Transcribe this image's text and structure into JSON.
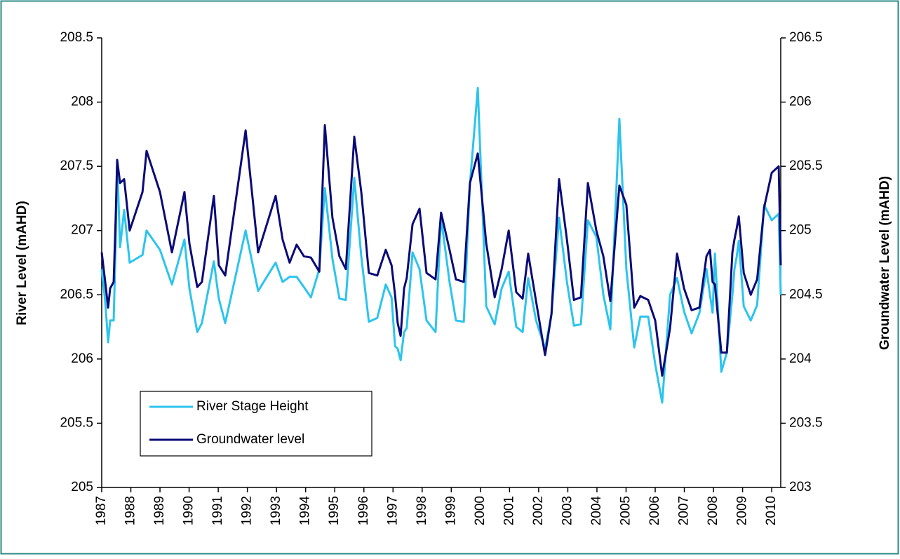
{
  "chart_data": {
    "type": "line",
    "ylabel": "River Level (mAHD)",
    "y2label": "Groundwater Level (mAHD)",
    "x": [
      1987.0,
      1987.12,
      1987.22,
      1987.29,
      1987.41,
      1987.48,
      1987.53,
      1987.63,
      1987.77,
      1987.96,
      1988.4,
      1988.54,
      1989.0,
      1989.41,
      1989.84,
      1990.01,
      1990.28,
      1990.44,
      1990.85,
      1991.02,
      1991.24,
      1991.94,
      1992.37,
      1992.97,
      1993.21,
      1993.45,
      1993.69,
      1993.94,
      1994.18,
      1994.47,
      1994.66,
      1994.92,
      1995.16,
      1995.38,
      1995.67,
      1995.91,
      1996.17,
      1996.46,
      1996.75,
      1996.95,
      1997.07,
      1997.16,
      1997.26,
      1997.38,
      1997.47,
      1997.67,
      1997.91,
      1998.15,
      1998.46,
      1998.65,
      1998.94,
      1999.16,
      1999.43,
      1999.64,
      1999.91,
      2000.2,
      2000.49,
      2000.73,
      2000.97,
      2001.23,
      2001.45,
      2001.64,
      2001.91,
      2002.22,
      2002.44,
      2002.7,
      2002.97,
      2003.21,
      2003.45,
      2003.69,
      2003.98,
      2004.22,
      2004.46,
      2004.77,
      2005.01,
      2005.28,
      2005.49,
      2005.76,
      2006.0,
      2006.24,
      2006.51,
      2006.75,
      2006.99,
      2007.25,
      2007.52,
      2007.76,
      2007.88,
      2007.97,
      2008.05,
      2008.27,
      2008.46,
      2008.65,
      2008.72,
      2008.8,
      2008.87,
      2009.04,
      2009.28,
      2009.5,
      2009.74,
      2010.0,
      2010.24,
      2010.31
    ],
    "series": [
      {
        "name": "River Stage Height",
        "color": "#2cc4ee",
        "axis": "y",
        "values": [
          206.7,
          206.45,
          206.13,
          206.3,
          206.3,
          206.9,
          207.55,
          206.87,
          207.16,
          206.75,
          206.81,
          207.0,
          206.85,
          206.58,
          206.93,
          206.55,
          206.21,
          206.28,
          206.76,
          206.47,
          206.28,
          207.0,
          206.53,
          206.75,
          206.6,
          206.64,
          206.64,
          206.56,
          206.48,
          206.7,
          207.33,
          206.78,
          206.47,
          206.46,
          207.41,
          206.8,
          206.29,
          206.32,
          206.58,
          206.48,
          206.1,
          206.08,
          205.99,
          206.21,
          206.24,
          206.83,
          206.7,
          206.3,
          206.21,
          207.1,
          206.6,
          206.3,
          206.29,
          207.36,
          208.11,
          206.41,
          206.27,
          206.55,
          206.68,
          206.25,
          206.21,
          206.63,
          206.3,
          206.08,
          206.35,
          207.1,
          206.6,
          206.26,
          206.27,
          207.08,
          206.95,
          206.5,
          206.23,
          207.87,
          206.7,
          206.09,
          206.33,
          206.33,
          205.96,
          205.66,
          206.5,
          206.63,
          206.37,
          206.2,
          206.36,
          206.7,
          206.5,
          206.36,
          206.82,
          205.9,
          206.05,
          206.5,
          206.7,
          206.8,
          206.92,
          206.41,
          206.3,
          206.42,
          207.2,
          207.08,
          207.13,
          206.5
        ]
      },
      {
        "name": "Groundwater level",
        "color": "#0a0a78",
        "axis": "y2",
        "values": [
          204.83,
          204.6,
          204.4,
          204.55,
          204.6,
          205.1,
          205.55,
          205.37,
          205.4,
          205.0,
          205.3,
          205.62,
          205.3,
          204.83,
          205.3,
          204.9,
          204.56,
          204.6,
          205.27,
          204.73,
          204.65,
          205.78,
          204.83,
          205.27,
          204.93,
          204.75,
          204.89,
          204.8,
          204.79,
          204.68,
          205.82,
          205.1,
          204.8,
          204.7,
          205.73,
          205.3,
          204.67,
          204.65,
          204.85,
          204.73,
          204.5,
          204.28,
          204.18,
          204.55,
          204.63,
          205.05,
          205.17,
          204.67,
          204.62,
          205.14,
          204.85,
          204.62,
          204.6,
          205.37,
          205.6,
          204.9,
          204.48,
          204.7,
          205.0,
          204.52,
          204.47,
          204.82,
          204.45,
          204.03,
          204.35,
          205.4,
          204.93,
          204.46,
          204.48,
          205.37,
          205.0,
          204.8,
          204.45,
          205.35,
          205.2,
          204.4,
          204.49,
          204.46,
          204.3,
          203.87,
          204.24,
          204.82,
          204.55,
          204.38,
          204.4,
          204.8,
          204.85,
          204.6,
          204.58,
          204.05,
          204.05,
          204.83,
          204.93,
          205.02,
          205.11,
          204.67,
          204.5,
          204.62,
          205.18,
          205.45,
          205.5,
          204.73
        ]
      }
    ],
    "xlim": [
      1987,
      2010.31
    ],
    "xticks": [
      1987,
      1988,
      1989,
      1990,
      1991,
      1992,
      1993,
      1994,
      1995,
      1996,
      1997,
      1998,
      1999,
      2000,
      2001,
      2002,
      2003,
      2004,
      2005,
      2006,
      2007,
      2008,
      2009,
      2010
    ],
    "ylim": [
      205,
      208.5
    ],
    "yticks": [
      205,
      205.5,
      206,
      206.5,
      207,
      207.5,
      208,
      208.5
    ],
    "y2lim": [
      203,
      206.5
    ],
    "y2ticks": [
      203,
      203.5,
      204,
      204.5,
      205,
      205.5,
      206,
      206.5
    ],
    "grid": false,
    "legend": "lower left"
  }
}
